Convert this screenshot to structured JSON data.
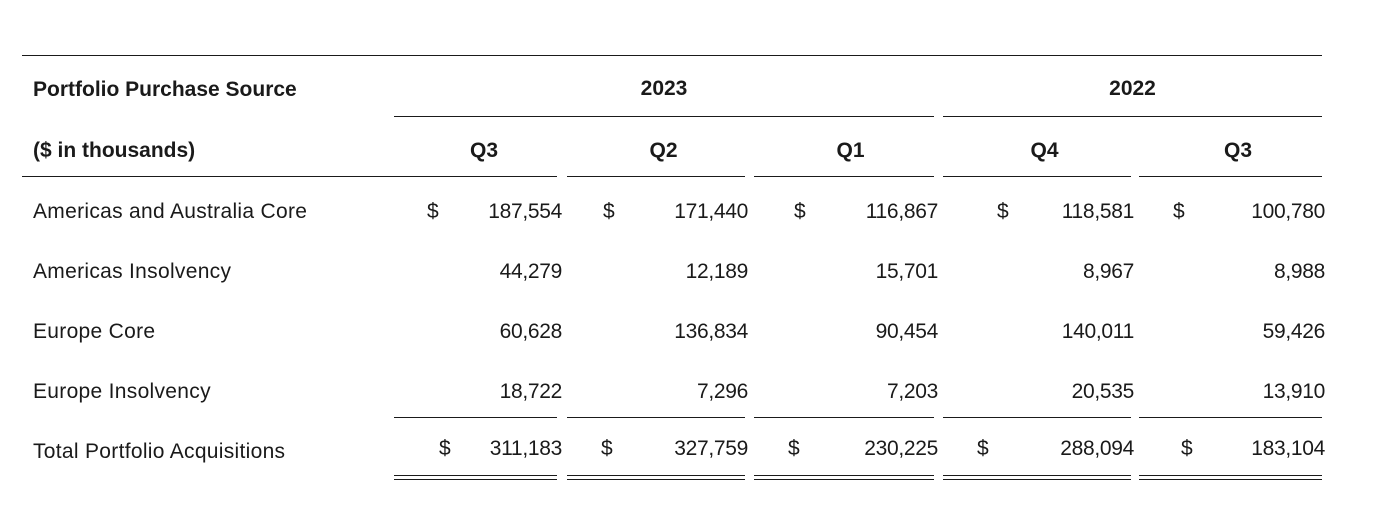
{
  "header": {
    "title": "Portfolio Purchase Source",
    "subtitle": "($ in thousands)",
    "years": [
      "2023",
      "2022"
    ],
    "quarters": [
      "Q3",
      "Q2",
      "Q1",
      "Q4",
      "Q3"
    ]
  },
  "rows": [
    {
      "label": "Americas and Australia Core",
      "currency": "$",
      "values": [
        "187,554",
        "171,440",
        "116,867",
        "118,581",
        "100,780"
      ]
    },
    {
      "label": "Americas Insolvency",
      "currency": "",
      "values": [
        "44,279",
        "12,189",
        "15,701",
        "8,967",
        "8,988"
      ]
    },
    {
      "label": "Europe Core",
      "currency": "",
      "values": [
        "60,628",
        "136,834",
        "90,454",
        "140,011",
        "59,426"
      ]
    },
    {
      "label": "Europe Insolvency",
      "currency": "",
      "values": [
        "18,722",
        "7,296",
        "7,203",
        "20,535",
        "13,910"
      ]
    }
  ],
  "total": {
    "label": "Total Portfolio Acquisitions",
    "currency": "$",
    "values": [
      "311,183",
      "327,759",
      "230,225",
      "288,094",
      "183,104"
    ]
  }
}
